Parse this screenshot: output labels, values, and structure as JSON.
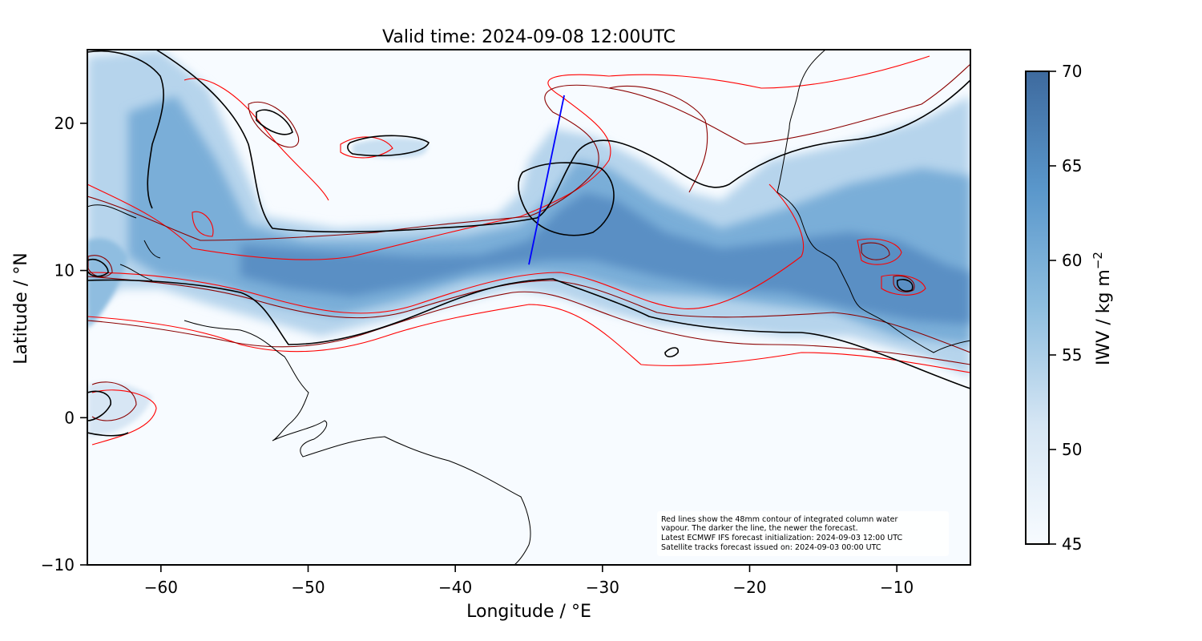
{
  "title": "Valid time: 2024-09-08 12:00UTC",
  "colors": {
    "background": "#f7fbff",
    "iwv_low": "#f7fbff",
    "iwv_high": "#3e6a9e",
    "contour_newest": "#000000",
    "contour_older": "#8b0000",
    "contour_oldest": "#ff0000",
    "satellite_track": "#0000ff",
    "coastline": "#000000"
  },
  "map": {
    "lon_range": [
      -65,
      -5
    ],
    "lat_range": [
      -10,
      25
    ],
    "xlabel": "Longitude / °E",
    "ylabel": "Latitude / °N",
    "x_ticks": [
      {
        "value": -60,
        "label": "−60"
      },
      {
        "value": -50,
        "label": "−50"
      },
      {
        "value": -40,
        "label": "−40"
      },
      {
        "value": -30,
        "label": "−30"
      },
      {
        "value": -20,
        "label": "−20"
      },
      {
        "value": -10,
        "label": "−10"
      }
    ],
    "y_ticks": [
      {
        "value": 20,
        "label": "20"
      },
      {
        "value": 10,
        "label": "10"
      },
      {
        "value": 0,
        "label": "0"
      },
      {
        "value": -10,
        "label": "−10"
      }
    ],
    "satellite_track": [
      [
        -35.0,
        10.4
      ],
      [
        -32.6,
        21.9
      ]
    ],
    "note_lines": [
      "Red lines show the 48mm contour of integrated column water",
      "vapour. The darker the line, the newer the forecast.",
      "Latest ECMWF IFS forecast initialization: 2024-09-03 12:00 UTC",
      "Satellite tracks forecast issued on: 2024-09-03 00:00 UTC"
    ]
  },
  "colorbar": {
    "label": "IWV / kg m",
    "label_superscript": "−2",
    "range": [
      45,
      70
    ],
    "ticks": [
      "45",
      "50",
      "55",
      "60",
      "65",
      "70"
    ]
  }
}
